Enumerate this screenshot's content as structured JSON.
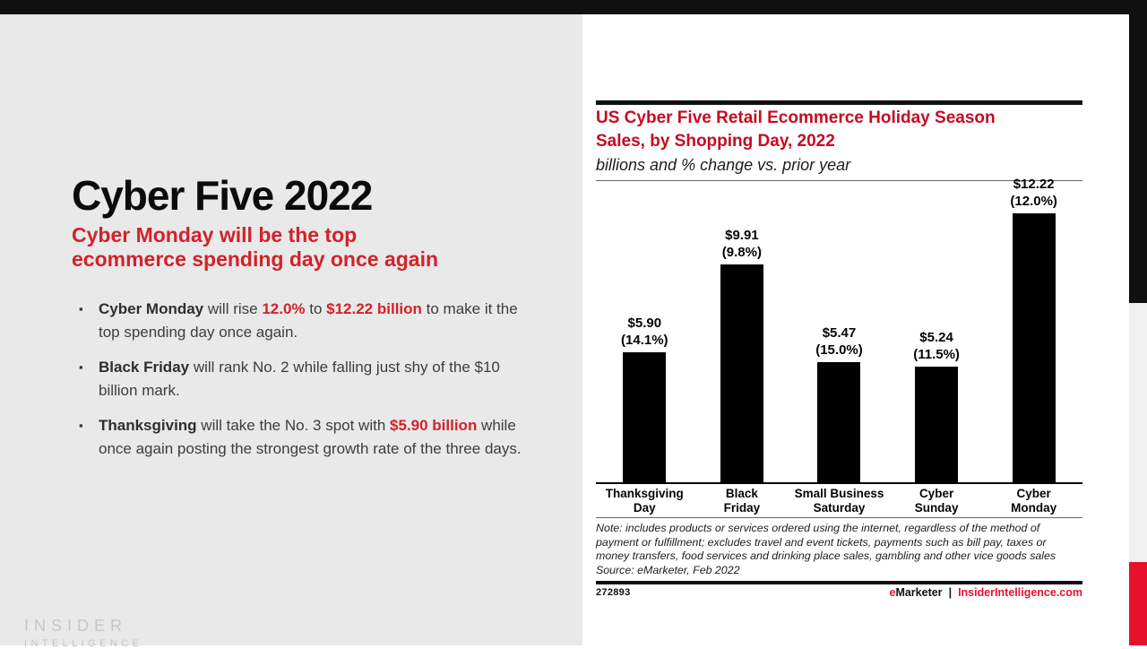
{
  "theme": {
    "accent_red": "#d2222a",
    "chart_red": "#c70b20",
    "footer_red": "#e8112d",
    "panel_gray": "#e9e9e9",
    "strip_gray": "#f0f0f0",
    "bar_black": "#000000",
    "text_dark": "#3d3d3d",
    "logo_gray": "#c6c6c6"
  },
  "slide": {
    "title": "Cyber Five 2022",
    "subtitle_lines": [
      "Cyber Monday will be the top",
      "ecommerce spending day once again"
    ],
    "bullets": [
      {
        "parts": [
          {
            "s": "b",
            "t": "Cyber Monday"
          },
          {
            "s": "n",
            "t": " will rise "
          },
          {
            "s": "r",
            "t": "12.0%"
          },
          {
            "s": "n",
            "t": " to "
          },
          {
            "s": "r",
            "t": "$12.22 billion"
          },
          {
            "s": "n",
            "t": " to make it the top spending day once again."
          }
        ]
      },
      {
        "parts": [
          {
            "s": "b",
            "t": "Black Friday"
          },
          {
            "s": "n",
            "t": " will rank No. 2 while falling just shy of the $10 billion mark."
          }
        ]
      },
      {
        "parts": [
          {
            "s": "b",
            "t": "Thanksgiving"
          },
          {
            "s": "n",
            "t": " will take the No. 3 spot with "
          },
          {
            "s": "r",
            "t": "$5.90 billion"
          },
          {
            "s": "n",
            "t": " while once again posting the strongest growth rate of the three days."
          }
        ]
      }
    ],
    "logo": {
      "line1": "INSIDER",
      "line2": "INTELLIGENCE"
    }
  },
  "chart": {
    "title_lines": [
      "US Cyber Five Retail Ecommerce Holiday Season",
      "Sales, by Shopping Day, 2022"
    ],
    "subtitle": "billions and % change vs. prior year",
    "note_lines": [
      "Note: includes products or services ordered using the internet, regardless of the method of",
      "payment or fulfillment; excludes travel and event tickets, payments such as bill pay, taxes or",
      "money transfers, food services and drinking place sales, gambling and other vice goods sales",
      "Source: eMarketer, Feb 2022"
    ],
    "footer": {
      "chart_id": "272893",
      "brand_e": "e",
      "brand_rest": "Marketer",
      "separator": "|",
      "website": "InsiderIntelligence.com"
    }
  },
  "chart_data": {
    "type": "bar",
    "title": "US Cyber Five Retail Ecommerce Holiday Season Sales, by Shopping Day, 2022",
    "subtitle": "billions and % change vs. prior year",
    "categories": [
      "Thanksgiving Day",
      "Black Friday",
      "Small Business Saturday",
      "Cyber Sunday",
      "Cyber Monday"
    ],
    "tick_lines": [
      [
        "Thanksgiving",
        "Day"
      ],
      [
        "Black",
        "Friday"
      ],
      [
        "Small Business",
        "Saturday"
      ],
      [
        "Cyber",
        "Sunday"
      ],
      [
        "Cyber",
        "Monday"
      ]
    ],
    "values_billions": [
      5.9,
      9.91,
      5.47,
      5.24,
      12.22
    ],
    "pct_change_vs_prior_year": [
      14.1,
      9.8,
      15.0,
      11.5,
      12.0
    ],
    "value_labels": [
      [
        "$5.90",
        "(14.1%)"
      ],
      [
        "$9.91",
        "(9.8%)"
      ],
      [
        "$5.47",
        "(15.0%)"
      ],
      [
        "$5.24",
        "(11.5%)"
      ],
      [
        "$12.22",
        "(12.0%)"
      ]
    ],
    "unit": "billions USD",
    "ylim": [
      0,
      12.22
    ],
    "grid": false,
    "legend": "none",
    "bar_color": "#000000",
    "source": "Source: eMarketer, Feb 2022"
  }
}
